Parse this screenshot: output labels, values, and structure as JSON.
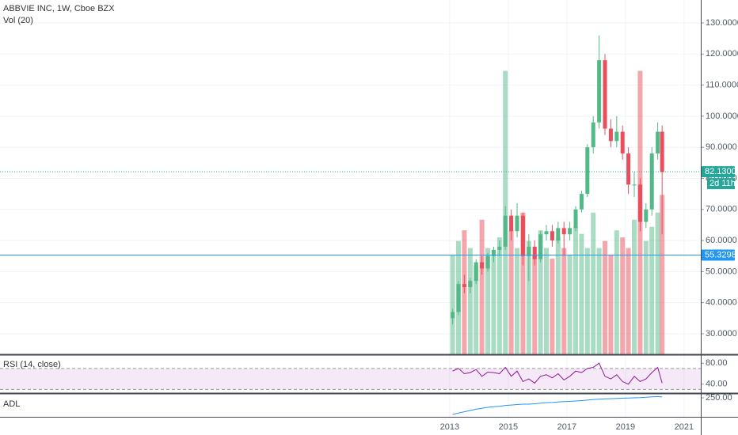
{
  "chart_data": [
    {
      "type": "candlestick",
      "title": "ABBVIE INC, 1W, Cboe BZX",
      "x": [
        2013.1,
        2013.3,
        2013.5,
        2013.7,
        2013.9,
        2014.1,
        2014.3,
        2014.5,
        2014.7,
        2014.9,
        2015.1,
        2015.3,
        2015.5,
        2015.7,
        2015.9,
        2016.1,
        2016.3,
        2016.5,
        2016.7,
        2016.9,
        2017.1,
        2017.3,
        2017.5,
        2017.7,
        2017.9,
        2018.1,
        2018.3,
        2018.5,
        2018.7,
        2018.9,
        2019.1,
        2019.3,
        2019.5,
        2019.7,
        2019.9,
        2020.1,
        2020.25
      ],
      "open": [
        35,
        37,
        46,
        45,
        47,
        53,
        51,
        55,
        57,
        58,
        68,
        63,
        68,
        55,
        58,
        54,
        62,
        63,
        60,
        64,
        62,
        64,
        70,
        75,
        90,
        98,
        118,
        96,
        92,
        95,
        88,
        78,
        78,
        66,
        70,
        88,
        95
      ],
      "high": [
        38,
        47,
        49,
        48,
        54,
        55,
        56,
        58,
        60,
        71,
        70,
        72,
        69,
        62,
        60,
        63,
        65,
        65,
        66,
        66,
        66,
        71,
        76,
        91,
        100,
        126,
        120,
        99,
        100,
        97,
        90,
        82,
        80,
        72,
        90,
        98,
        97
      ],
      "low": [
        33,
        36,
        43,
        43,
        46,
        49,
        50,
        53,
        55,
        57,
        60,
        61,
        52,
        47,
        52,
        53,
        60,
        58,
        59,
        55,
        60,
        63,
        69,
        74,
        88,
        96,
        94,
        90,
        90,
        86,
        75,
        74,
        63,
        64,
        68,
        86,
        62
      ],
      "close": [
        37,
        46,
        45,
        47,
        53,
        51,
        55,
        57,
        58,
        68,
        63,
        68,
        55,
        58,
        54,
        62,
        63,
        60,
        64,
        62,
        64,
        70,
        75,
        90,
        98,
        118,
        96,
        92,
        95,
        88,
        78,
        78,
        66,
        70,
        88,
        95,
        82
      ],
      "up_color": "#53b987",
      "down_color": "#eb4d5c",
      "xlim": [
        1997.65,
        2021.57
      ],
      "xticks": [
        2013,
        2015,
        2017,
        2019,
        2021
      ],
      "ylim": [
        23.38,
        137.38
      ],
      "yticks": [
        {
          "value": 30,
          "label": "30.0000"
        },
        {
          "value": 40,
          "label": "40.0000"
        },
        {
          "value": 50,
          "label": "50.0000"
        },
        {
          "value": 60,
          "label": "60.0000"
        },
        {
          "value": 70,
          "label": "70.0000"
        },
        {
          "value": 80,
          "label": "80.0000"
        },
        {
          "value": 90,
          "label": "90.0000"
        },
        {
          "value": 100,
          "label": "100.0000"
        },
        {
          "value": 110,
          "label": "110.0000"
        },
        {
          "value": 120,
          "label": "120.0000"
        },
        {
          "value": 130,
          "label": "130.0000"
        }
      ],
      "grid": true,
      "price_lines": [
        {
          "value": 82.13,
          "label": "82.1300",
          "color": "#26a69a",
          "countdown": "2d 11h"
        },
        {
          "value": 55.3298,
          "label": "55.3298",
          "color": "#2196f3"
        }
      ],
      "volume": {
        "title": "Vol (20)",
        "ylim": [
          0,
          100
        ],
        "values": [
          28,
          32,
          35,
          30,
          25,
          38,
          30,
          28,
          33,
          80,
          35,
          30,
          40,
          32,
          28,
          35,
          30,
          27,
          33,
          30,
          28,
          36,
          34,
          30,
          40,
          30,
          32,
          28,
          35,
          33,
          30,
          38,
          80,
          32,
          36,
          40,
          45
        ]
      }
    },
    {
      "type": "line",
      "title": "RSI (14, close)",
      "color": "#8e1599",
      "values": [
        65,
        70,
        60,
        62,
        68,
        55,
        63,
        62,
        60,
        72,
        55,
        65,
        45,
        50,
        42,
        55,
        58,
        52,
        60,
        48,
        55,
        65,
        62,
        70,
        72,
        80,
        55,
        50,
        58,
        45,
        40,
        55,
        45,
        50,
        62,
        72,
        42
      ],
      "ylim": [
        23,
        95.4
      ],
      "band": [
        30,
        70
      ],
      "yticks": [
        {
          "value": 80,
          "label": "80.00"
        },
        {
          "value": 40,
          "label": "40.00"
        }
      ]
    },
    {
      "type": "line",
      "title": "ADL",
      "color": "#2196f3",
      "values": [
        171,
        178,
        184,
        190,
        196,
        200,
        205,
        208,
        210,
        214,
        216,
        218,
        220,
        220,
        222,
        225,
        227,
        228,
        230,
        232,
        233,
        235,
        237,
        239,
        242,
        244,
        245,
        246,
        247,
        248,
        249,
        250,
        251,
        253,
        255,
        256,
        254
      ],
      "ylim": [
        160,
        265
      ],
      "yticks": [
        {
          "value": 250,
          "label": "250.00"
        }
      ]
    }
  ]
}
